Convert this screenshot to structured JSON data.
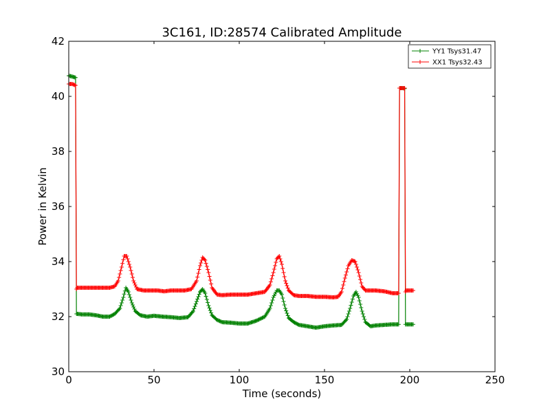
{
  "chart_data": {
    "type": "line",
    "title": "3C161, ID:28574 Calibrated Amplitude",
    "xlabel": "Time (seconds)",
    "ylabel": "Power in Kelvin",
    "xlim": [
      0,
      250
    ],
    "ylim": [
      30,
      42
    ],
    "xticks": [
      "0",
      "50",
      "100",
      "150",
      "200",
      "250"
    ],
    "yticks": [
      "30",
      "32",
      "34",
      "36",
      "38",
      "40",
      "42"
    ],
    "grid": false,
    "legend_position": "top-right",
    "marker": "+",
    "series": [
      {
        "name": "YY1 Tsys31.47",
        "color": "#008000",
        "x": [
          0,
          2,
          4,
          4.5,
          5,
          8,
          12,
          16,
          20,
          24,
          27,
          30,
          32,
          33.5,
          35,
          37,
          39,
          42,
          46,
          50,
          55,
          60,
          65,
          70,
          73,
          75,
          77,
          78.5,
          80,
          82,
          84,
          87,
          90,
          95,
          100,
          105,
          110,
          115,
          118,
          120,
          122,
          123.5,
          125,
          127,
          129,
          132,
          135,
          140,
          145,
          150,
          155,
          160,
          163,
          165,
          167,
          168.5,
          170,
          172,
          174,
          177,
          180,
          185,
          190,
          193.5,
          194,
          195,
          196,
          197,
          197.5,
          198,
          200,
          202
        ],
        "y": [
          40.75,
          40.72,
          40.68,
          32.1,
          32.1,
          32.08,
          32.08,
          32.05,
          32.0,
          32.0,
          32.1,
          32.3,
          32.7,
          33.05,
          32.9,
          32.5,
          32.2,
          32.05,
          32.0,
          32.03,
          32.0,
          31.98,
          31.95,
          31.98,
          32.2,
          32.55,
          32.9,
          33.0,
          32.85,
          32.4,
          32.05,
          31.88,
          31.8,
          31.78,
          31.75,
          31.75,
          31.85,
          32.0,
          32.3,
          32.7,
          32.95,
          32.95,
          32.8,
          32.3,
          31.95,
          31.8,
          31.7,
          31.65,
          31.6,
          31.65,
          31.68,
          31.7,
          31.9,
          32.3,
          32.75,
          32.9,
          32.7,
          32.2,
          31.8,
          31.65,
          31.68,
          31.7,
          31.72,
          31.72,
          40.3,
          40.3,
          40.3,
          40.28,
          31.72,
          31.72,
          31.72,
          31.72
        ]
      },
      {
        "name": "XX1 Tsys32.43",
        "color": "#ff0000",
        "x": [
          0,
          2,
          4,
          4.5,
          5,
          8,
          12,
          16,
          20,
          24,
          27,
          29,
          31,
          32.5,
          34,
          36,
          38,
          40,
          44,
          48,
          52,
          56,
          60,
          64,
          68,
          72,
          75,
          77,
          78.5,
          80,
          82,
          84,
          87,
          90,
          95,
          100,
          105,
          110,
          115,
          118,
          120,
          122,
          123.5,
          125,
          127,
          129,
          132,
          135,
          140,
          145,
          150,
          155,
          158,
          160,
          162,
          164,
          166,
          168,
          170,
          172,
          174,
          177,
          180,
          185,
          190,
          193.5,
          194,
          195,
          196,
          197,
          197.5,
          198,
          200,
          202
        ],
        "y": [
          40.45,
          40.45,
          40.4,
          33.0,
          33.05,
          33.05,
          33.05,
          33.05,
          33.05,
          33.05,
          33.1,
          33.3,
          33.8,
          34.2,
          34.2,
          33.8,
          33.3,
          33.0,
          32.95,
          32.95,
          32.95,
          32.92,
          32.95,
          32.95,
          32.95,
          33.0,
          33.3,
          33.85,
          34.15,
          34.05,
          33.6,
          33.05,
          32.8,
          32.78,
          32.8,
          32.8,
          32.8,
          32.85,
          32.9,
          33.15,
          33.6,
          34.1,
          34.2,
          33.9,
          33.3,
          32.95,
          32.78,
          32.75,
          32.75,
          32.72,
          32.72,
          32.7,
          32.72,
          32.9,
          33.4,
          33.85,
          34.05,
          34.0,
          33.6,
          33.1,
          32.95,
          32.95,
          32.95,
          32.92,
          32.85,
          32.85,
          40.3,
          40.3,
          40.3,
          40.3,
          32.9,
          32.95,
          32.95,
          32.95
        ]
      }
    ]
  }
}
